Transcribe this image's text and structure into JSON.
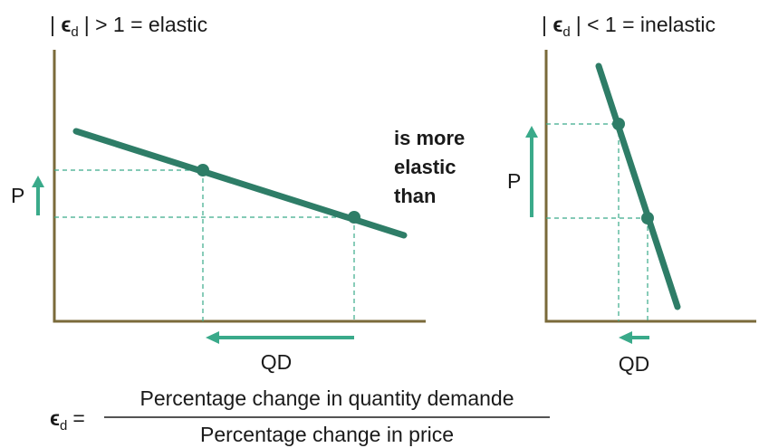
{
  "left_panel": {
    "title_prefix": "|",
    "symbol": "ϵ",
    "subscript": "d",
    "title_suffix": "| > 1 = elastic",
    "p_label": "P",
    "qd_label": "QD"
  },
  "middle_text": [
    "is more",
    "elastic",
    "than"
  ],
  "right_panel": {
    "title_prefix": "|",
    "symbol": "ϵ",
    "subscript": "d",
    "title_suffix": "| < 1 = inelastic",
    "p_label": "P",
    "qd_label": "QD"
  },
  "formula": {
    "symbol": "ϵ",
    "subscript": "d",
    "equals": "=",
    "numerator": "Percentage change in quantity demande",
    "denominator": "Percentage change in price"
  }
}
